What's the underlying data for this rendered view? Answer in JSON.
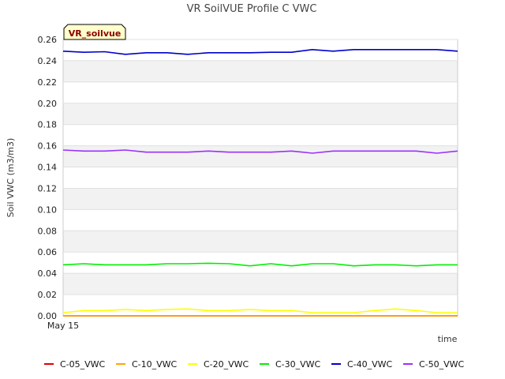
{
  "chart_data": {
    "type": "line",
    "title": "VR SoilVUE Profile C VWC",
    "xlabel": "time",
    "ylabel": "Soil VWC (m3/m3)",
    "ylim": [
      0,
      0.26
    ],
    "yticks": [
      "0.00",
      "0.02",
      "0.04",
      "0.06",
      "0.08",
      "0.10",
      "0.12",
      "0.14",
      "0.16",
      "0.18",
      "0.20",
      "0.22",
      "0.24",
      "0.26"
    ],
    "x_start_label": "May 15",
    "x_count": 20,
    "badge": "VR_soilvue",
    "grid": true,
    "legend_position": "bottom",
    "series": [
      {
        "name": "C-05_VWC",
        "color": "#dd0000",
        "values": [
          0,
          0,
          0,
          0,
          0,
          0,
          0,
          0,
          0,
          0,
          0,
          0,
          0,
          0,
          0,
          0,
          0,
          0,
          0,
          0
        ]
      },
      {
        "name": "C-10_VWC",
        "color": "#ffa500",
        "values": [
          0,
          0,
          0,
          0,
          0,
          0,
          0,
          0,
          0,
          0,
          0,
          0,
          0,
          0,
          0,
          0,
          0,
          0,
          0,
          0
        ]
      },
      {
        "name": "C-20_VWC",
        "color": "#ffff00",
        "values": [
          0.003,
          0.005,
          0.005,
          0.006,
          0.005,
          0.006,
          0.0065,
          0.005,
          0.005,
          0.006,
          0.005,
          0.005,
          0.003,
          0.003,
          0.003,
          0.005,
          0.0065,
          0.005,
          0.003,
          0.003
        ]
      },
      {
        "name": "C-30_VWC",
        "color": "#00ee00",
        "values": [
          0.048,
          0.049,
          0.048,
          0.048,
          0.048,
          0.049,
          0.049,
          0.0495,
          0.049,
          0.047,
          0.049,
          0.047,
          0.049,
          0.049,
          0.047,
          0.048,
          0.048,
          0.047,
          0.048,
          0.048
        ]
      },
      {
        "name": "C-40_VWC",
        "color": "#0000cc",
        "values": [
          0.249,
          0.248,
          0.2485,
          0.246,
          0.2475,
          0.2475,
          0.246,
          0.2475,
          0.2475,
          0.2475,
          0.248,
          0.248,
          0.2505,
          0.249,
          0.2505,
          0.2505,
          0.2505,
          0.2505,
          0.2505,
          0.249
        ]
      },
      {
        "name": "C-50_VWC",
        "color": "#9b30ff",
        "values": [
          0.156,
          0.155,
          0.155,
          0.156,
          0.154,
          0.154,
          0.154,
          0.155,
          0.154,
          0.154,
          0.154,
          0.155,
          0.153,
          0.155,
          0.155,
          0.155,
          0.155,
          0.155,
          0.153,
          0.155
        ]
      }
    ]
  }
}
